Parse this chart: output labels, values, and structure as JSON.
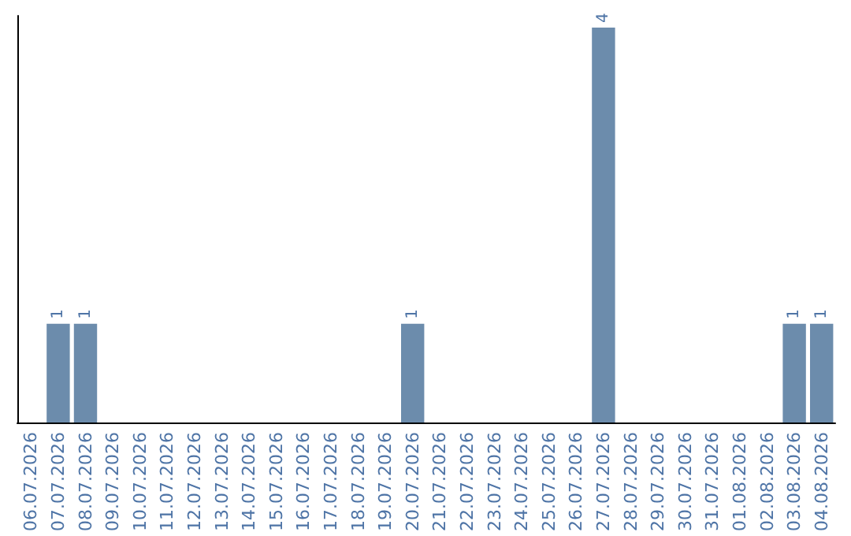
{
  "chart_data": {
    "type": "bar",
    "categories": [
      "06.07.2026",
      "07.07.2026",
      "08.07.2026",
      "09.07.2026",
      "10.07.2026",
      "11.07.2026",
      "12.07.2026",
      "13.07.2026",
      "14.07.2026",
      "15.07.2026",
      "16.07.2026",
      "17.07.2026",
      "18.07.2026",
      "19.07.2026",
      "20.07.2026",
      "21.07.2026",
      "22.07.2026",
      "23.07.2026",
      "24.07.2026",
      "25.07.2026",
      "26.07.2026",
      "27.07.2026",
      "28.07.2026",
      "29.07.2026",
      "30.07.2026",
      "31.07.2026",
      "01.08.2026",
      "02.08.2026",
      "03.08.2026",
      "04.08.2026"
    ],
    "values": [
      0,
      1,
      1,
      0,
      0,
      0,
      0,
      0,
      0,
      0,
      0,
      0,
      0,
      0,
      1,
      0,
      0,
      0,
      0,
      0,
      0,
      4,
      0,
      0,
      0,
      0,
      0,
      0,
      1,
      1
    ],
    "value_labels": [
      null,
      "1",
      "1",
      null,
      null,
      null,
      null,
      null,
      null,
      null,
      null,
      null,
      null,
      null,
      "1",
      null,
      null,
      null,
      null,
      null,
      null,
      "4",
      null,
      null,
      null,
      null,
      null,
      null,
      "1",
      "1"
    ],
    "color": "#6c8cac",
    "tick_labels": "x",
    "grid": false
  }
}
